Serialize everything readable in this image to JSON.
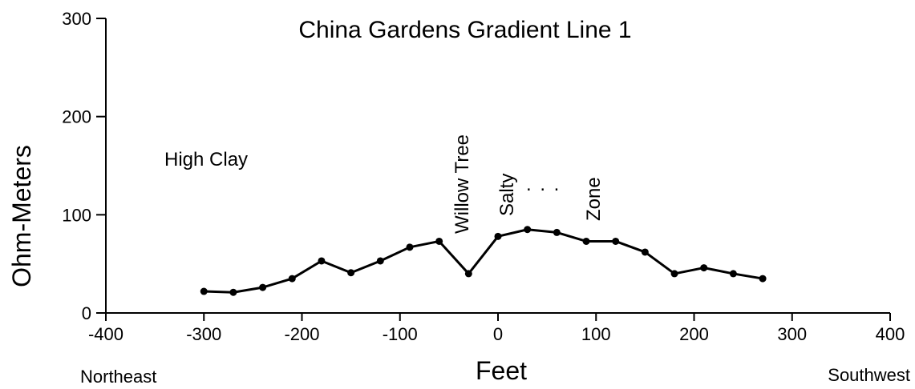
{
  "chart_data": {
    "type": "line",
    "title": "China Gardens Gradient Line 1",
    "xlabel": "Feet",
    "ylabel": "Ohm-Meters",
    "xlim": [
      -400,
      400
    ],
    "ylim": [
      0,
      300
    ],
    "x_ticks": [
      -400,
      -300,
      -200,
      -100,
      0,
      100,
      200,
      300,
      400
    ],
    "y_ticks": [
      0,
      100,
      200,
      300
    ],
    "grid": false,
    "direction_labels": {
      "left": "Northeast",
      "right": "Southwest"
    },
    "annotations": {
      "high_clay": "High Clay",
      "willow_tree": "Willow Tree",
      "salty": "Salty",
      "ellipsis": ". . .",
      "zone": "Zone"
    },
    "series": [
      {
        "x": [
          -300,
          -270,
          -240,
          -210,
          -180,
          -150,
          -120,
          -90,
          -60,
          -30,
          0,
          30,
          60,
          90,
          120,
          150,
          180,
          210,
          240,
          270
        ],
        "y": [
          22,
          21,
          26,
          35,
          53,
          41,
          53,
          67,
          73,
          40,
          78,
          85,
          82,
          73,
          73,
          62,
          40,
          46,
          40,
          35
        ]
      }
    ]
  }
}
